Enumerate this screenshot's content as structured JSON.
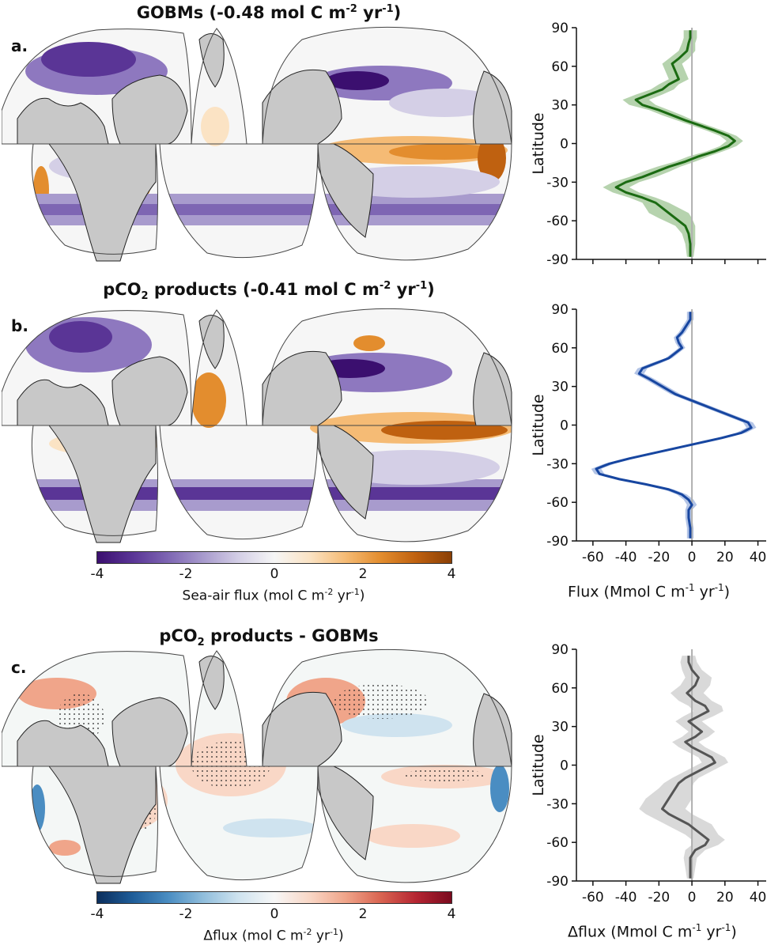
{
  "panels": [
    {
      "label": "a.",
      "title_main": "GOBMs (-0.48 mol C m",
      "title_sup": "-2",
      "title_mid": " yr",
      "title_sup2": "-1",
      "title_end": ")"
    },
    {
      "label": "b.",
      "title_pre": "pCO",
      "title_sub": "2",
      "title_main": " products (-0.41 mol C m",
      "title_sup": "-2",
      "title_mid": " yr",
      "title_sup2": "-1",
      "title_end": ")"
    },
    {
      "label": "c.",
      "title_pre": "pCO",
      "title_sub": "2",
      "title_main": " products - GOBMs"
    }
  ],
  "colorbars": [
    {
      "ticks": [
        "-4",
        "-2",
        "0",
        "2",
        "4"
      ],
      "label_main": "Sea-air flux (mol C m",
      "label_sup": "-2",
      "label_mid": " yr",
      "label_sup2": "-1",
      "label_end": ")",
      "colors": [
        "#3b0f6f",
        "#5a3596",
        "#7e66b3",
        "#a89bcd",
        "#d4cfe6",
        "#f6f6f6",
        "#fbe3c4",
        "#f5bb75",
        "#e38d2e",
        "#bf6110",
        "#8a3f05"
      ]
    },
    {
      "ticks": [
        "-4",
        "-2",
        "0",
        "2",
        "4"
      ],
      "label_main": "Δflux (mol C m",
      "label_sup": "-2",
      "label_mid": " yr",
      "label_sup2": "-1",
      "label_end": ")",
      "colors": [
        "#0b2e5c",
        "#1f5d99",
        "#4a8dc2",
        "#91bedc",
        "#cfe3ef",
        "#f7f7f7",
        "#f9d7c6",
        "#f0a58a",
        "#d96451",
        "#b52532",
        "#7a0a1e"
      ]
    }
  ],
  "profile_axes": {
    "ylabel": "Latitude",
    "yticks": [
      "90",
      "60",
      "30",
      "0",
      "-30",
      "-60",
      "-90"
    ],
    "xticks": [
      "-60",
      "-40",
      "-20",
      "0",
      "20",
      "40"
    ],
    "xlabel_b_main": "Flux (Mmol C m",
    "xlabel_b_sup": "-1",
    "xlabel_b_mid": " yr",
    "xlabel_b_sup2": "-1",
    "xlabel_b_end": ")",
    "xlabel_c_main": "Δflux (Mmol C m",
    "xlabel_c_sup": "-1",
    "xlabel_c_mid": " yr",
    "xlabel_c_sup2": "-1",
    "xlabel_c_end": ")"
  },
  "colors": {
    "land": "#c8c8c8",
    "gobm_line": "#1b6b12",
    "gobm_band": "#b6d3ae",
    "pco2_line": "#1746a0",
    "pco2_band": "#b3c4e6",
    "diff_line": "#555555",
    "diff_band": "#d9d9d9",
    "zero_line": "#b0b0b0"
  },
  "chart_data": [
    {
      "type": "line",
      "panel": "a",
      "xlim": [
        -70,
        45
      ],
      "ylim": [
        -90,
        90
      ],
      "series": [
        {
          "x": [
            -1,
            -1,
            -2,
            -3,
            -8,
            -12,
            -10,
            -8,
            -14,
            -18,
            -26,
            -34,
            -30,
            -20,
            -12,
            -4,
            5,
            14,
            22,
            26,
            22,
            14,
            4,
            -4,
            -14,
            -22,
            -30,
            -40,
            -46,
            -40,
            -30,
            -22,
            -18,
            -14,
            -10,
            -4,
            -2,
            -1,
            -1
          ],
          "y": [
            88,
            82,
            78,
            72,
            66,
            62,
            56,
            50,
            46,
            42,
            38,
            34,
            30,
            26,
            22,
            18,
            14,
            10,
            6,
            2,
            -2,
            -6,
            -10,
            -14,
            -18,
            -22,
            -26,
            -30,
            -34,
            -38,
            -42,
            -46,
            -50,
            -54,
            -58,
            -64,
            -70,
            -78,
            -88
          ],
          "band": [
            4,
            4,
            4,
            5,
            6,
            6,
            6,
            6,
            6,
            7,
            8,
            8,
            8,
            6,
            6,
            5,
            5,
            5,
            5,
            5,
            5,
            5,
            6,
            6,
            7,
            8,
            8,
            8,
            8,
            8,
            8,
            8,
            10,
            12,
            10,
            6,
            4,
            3,
            2
          ]
        }
      ]
    },
    {
      "type": "line",
      "panel": "b",
      "xlim": [
        -70,
        45
      ],
      "ylim": [
        -90,
        90
      ],
      "series": [
        {
          "x": [
            -1,
            -1,
            -3,
            -6,
            -9,
            -8,
            -6,
            -10,
            -14,
            -22,
            -30,
            -32,
            -26,
            -18,
            -10,
            2,
            14,
            26,
            34,
            36,
            30,
            18,
            4,
            -10,
            -24,
            -38,
            -50,
            -58,
            -56,
            -44,
            -28,
            -14,
            -6,
            -2,
            0,
            -2,
            -2,
            -1,
            -1
          ],
          "y": [
            88,
            82,
            78,
            72,
            68,
            64,
            60,
            56,
            52,
            48,
            44,
            40,
            36,
            30,
            24,
            18,
            12,
            6,
            2,
            -2,
            -6,
            -10,
            -14,
            -18,
            -22,
            -26,
            -30,
            -34,
            -38,
            -42,
            -46,
            -50,
            -54,
            -58,
            -62,
            -66,
            -72,
            -80,
            -88
          ],
          "band": [
            2,
            2,
            2,
            2,
            2,
            2,
            2,
            2,
            2,
            3,
            3,
            3,
            3,
            3,
            3,
            3,
            3,
            3,
            3,
            3,
            3,
            3,
            3,
            3,
            3,
            3,
            3,
            3,
            3,
            3,
            3,
            3,
            3,
            3,
            3,
            2,
            2,
            2,
            2
          ]
        }
      ]
    },
    {
      "type": "line",
      "panel": "c",
      "xlim": [
        -70,
        45
      ],
      "ylim": [
        -90,
        90
      ],
      "series": [
        {
          "x": [
            -2,
            -2,
            0,
            4,
            2,
            -3,
            2,
            8,
            10,
            4,
            -2,
            2,
            6,
            2,
            -4,
            0,
            6,
            12,
            14,
            8,
            2,
            -4,
            -8,
            -10,
            -12,
            -14,
            -16,
            -18,
            -14,
            -8,
            -2,
            2,
            6,
            10,
            8,
            2,
            -1,
            -1,
            -1
          ],
          "y": [
            85,
            80,
            74,
            68,
            62,
            56,
            50,
            46,
            42,
            38,
            34,
            30,
            26,
            22,
            18,
            14,
            10,
            6,
            2,
            -2,
            -6,
            -10,
            -14,
            -18,
            -22,
            -26,
            -30,
            -34,
            -38,
            -42,
            -46,
            -50,
            -54,
            -58,
            -62,
            -66,
            -72,
            -80,
            -88
          ],
          "band": [
            4,
            5,
            6,
            8,
            9,
            10,
            10,
            10,
            9,
            9,
            8,
            8,
            8,
            8,
            8,
            8,
            8,
            8,
            8,
            8,
            8,
            8,
            9,
            10,
            12,
            14,
            14,
            14,
            14,
            14,
            14,
            12,
            10,
            10,
            8,
            6,
            4,
            3,
            2
          ]
        }
      ]
    }
  ]
}
